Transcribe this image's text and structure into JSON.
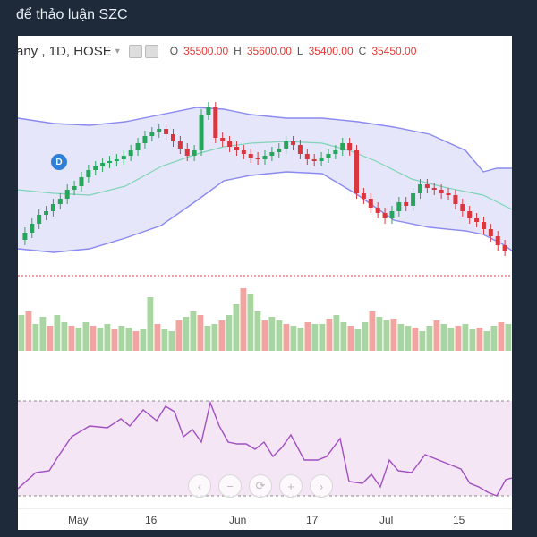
{
  "page": {
    "title": "để thảo luận SZC"
  },
  "header": {
    "symbol": "any , 1D, HOSE",
    "ohlc": [
      {
        "k": "O",
        "v": "35500.00"
      },
      {
        "k": "H",
        "v": "35600.00"
      },
      {
        "k": "L",
        "v": "35400.00"
      },
      {
        "k": "C",
        "v": "35450.00"
      }
    ]
  },
  "dividend_marker": "D",
  "nav_buttons": [
    {
      "name": "scroll-left-button",
      "glyph": "‹"
    },
    {
      "name": "zoom-out-button",
      "glyph": "−"
    },
    {
      "name": "reset-button",
      "glyph": "⟳"
    },
    {
      "name": "zoom-in-button",
      "glyph": "+"
    },
    {
      "name": "scroll-right-button",
      "glyph": "›"
    }
  ],
  "x_axis": {
    "labels": [
      "May",
      "16",
      "Jun",
      "17",
      "Jul",
      "15"
    ]
  },
  "colors": {
    "up": "#26a65b",
    "down": "#d9363e",
    "band_line": "#8a8af0",
    "band_fill": "#e6e6fa",
    "mid_line": "#7fd4b8",
    "vol_up": "#a8d5a2",
    "vol_down": "#f4a4a0",
    "osc_line": "#a04fc0",
    "osc_fill": "#f5e6f5"
  }
}
